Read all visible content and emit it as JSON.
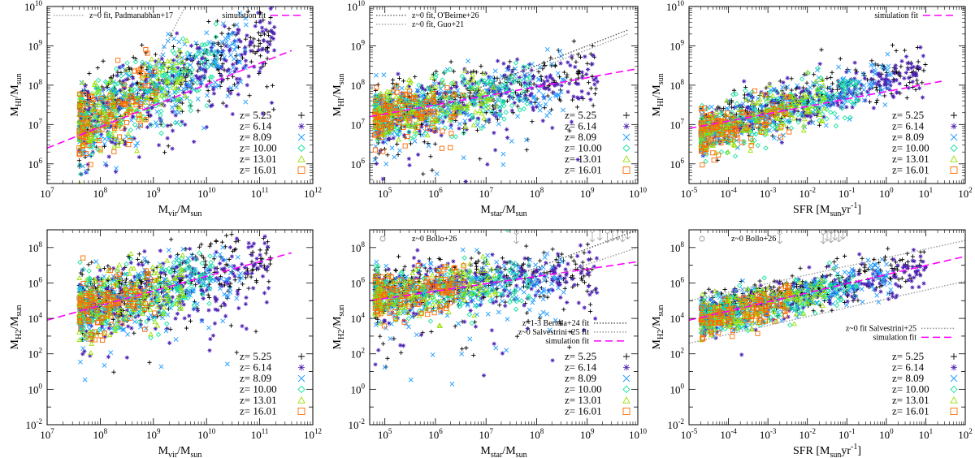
{
  "chart_data": [
    {
      "id": "hi-mvir",
      "type": "scatter",
      "xlabel": {
        "base": "M",
        "sub": "vir",
        "rest": "/M",
        "sub2": "sun"
      },
      "ylabel": {
        "base": "M",
        "sub": "HI",
        "rest": "/M",
        "sub2": "sun"
      },
      "xlim_log": [
        7,
        12
      ],
      "ylim_log": [
        5.5,
        10
      ],
      "xticks_log": [
        7,
        8,
        9,
        10,
        11,
        12
      ],
      "yticks_log": [
        6,
        7,
        8,
        9,
        10
      ],
      "legend_top": [
        {
          "text": "z~0 fit, Padmanabhan+17",
          "style": "dotted",
          "color": "#999999",
          "pos": "left"
        },
        {
          "text": "simulation fit",
          "style": "dashed",
          "color": "#ff00ff",
          "pos": "right"
        }
      ],
      "fit_lines": [
        {
          "name": "simulation fit",
          "style": "dashed",
          "color": "#ff00ff",
          "x": [
            7,
            11.6
          ],
          "y": [
            6.4,
            8.88
          ]
        },
        {
          "name": "z~0 fit, Padmanabhan+17",
          "style": "dotted",
          "color": "#999999",
          "x": [
            8.8,
            9.6
          ],
          "y": [
            7.9,
            10
          ]
        }
      ],
      "cloud": {
        "x0": 7.6,
        "x1": 11.3,
        "slope": 0.62,
        "intercept": 2.3,
        "scatter": 0.45,
        "low_tail": true
      }
    },
    {
      "id": "hi-mstar",
      "type": "scatter",
      "xlabel": {
        "base": "M",
        "sub": "star",
        "rest": "/M",
        "sub2": "sun"
      },
      "ylabel": {
        "base": "M",
        "sub": "HI",
        "rest": "/M",
        "sub2": "sun"
      },
      "xlim_log": [
        4.7,
        10
      ],
      "ylim_log": [
        5.5,
        10
      ],
      "xticks_log": [
        5,
        6,
        7,
        8,
        9,
        10
      ],
      "yticks_log": [
        6,
        7,
        8,
        9,
        10
      ],
      "legend_top": [
        {
          "text": "z~0 fit, O'Beirne+26",
          "style": "dotted",
          "color": "#555555",
          "pos": "left"
        },
        {
          "text": "z~0 fit, Guo+21",
          "style": "dotted",
          "color": "#999999",
          "pos": "left"
        }
      ],
      "fit_lines": [
        {
          "name": "simulation fit",
          "style": "dashed",
          "color": "#ff00ff",
          "x": [
            4.7,
            10
          ],
          "y": [
            7.2,
            8.42
          ]
        },
        {
          "name": "z~0 fit, O'Beirne+26",
          "style": "dotted",
          "color": "#555555",
          "x": [
            6,
            9.8
          ],
          "y": [
            7.5,
            9.4
          ]
        },
        {
          "name": "z~0 fit, Guo+21",
          "style": "dotted",
          "color": "#999999",
          "x": [
            6,
            9.8
          ],
          "y": [
            7.4,
            9.3
          ]
        }
      ],
      "cloud": {
        "x0": 4.8,
        "x1": 9.2,
        "slope": 0.23,
        "intercept": 6.1,
        "scatter": 0.35,
        "low_tail": true
      }
    },
    {
      "id": "hi-sfr",
      "type": "scatter",
      "xlabel": {
        "base": "SFR [M",
        "sub": "sun",
        "rest": "yr",
        "sup": "-1",
        "end": "]"
      },
      "ylabel": {
        "base": "M",
        "sub": "HI",
        "rest": "/M",
        "sub2": "sun"
      },
      "xlim_log": [
        -5,
        2
      ],
      "ylim_log": [
        5.5,
        10
      ],
      "xticks_log": [
        -5,
        -4,
        -3,
        -2,
        -1,
        0,
        1,
        2
      ],
      "yticks_log": [
        6,
        7,
        8,
        9,
        10
      ],
      "legend_top": [
        {
          "text": "simulation fit",
          "style": "dashed",
          "color": "#ff00ff",
          "pos": "right"
        }
      ],
      "fit_lines": [
        {
          "name": "simulation fit",
          "style": "dashed",
          "color": "#ff00ff",
          "x": [
            -5,
            1.4
          ],
          "y": [
            6.9,
            8.1
          ]
        }
      ],
      "cloud": {
        "x0": -4.7,
        "x1": 1.0,
        "slope": 0.28,
        "intercept": 8.1,
        "scatter": 0.3,
        "low_tail": false
      }
    },
    {
      "id": "h2-mvir",
      "type": "scatter",
      "xlabel": {
        "base": "M",
        "sub": "vir",
        "rest": "/M",
        "sub2": "sun"
      },
      "ylabel": {
        "base": "M",
        "sub": "H2",
        "rest": "/M",
        "sub2": "sun"
      },
      "xlim_log": [
        7,
        12
      ],
      "ylim_log": [
        -2,
        9
      ],
      "xticks_log": [
        7,
        8,
        9,
        10,
        11,
        12
      ],
      "yticks_log": [
        -2,
        0,
        2,
        4,
        6,
        8
      ],
      "legend_top": [],
      "fit_lines": [
        {
          "name": "simulation fit",
          "style": "dashed",
          "color": "#ff00ff",
          "x": [
            7,
            11.6
          ],
          "y": [
            3.9,
            7.7
          ]
        }
      ],
      "cloud": {
        "x0": 7.6,
        "x1": 11.2,
        "slope": 0.7,
        "intercept": -0.8,
        "scatter": 0.9,
        "low_tail": true
      }
    },
    {
      "id": "h2-mstar",
      "type": "scatter",
      "xlabel": {
        "base": "M",
        "sub": "star",
        "rest": "/M",
        "sub2": "sun"
      },
      "ylabel": {
        "base": "M",
        "sub": "H2",
        "rest": "/M",
        "sub2": "sun"
      },
      "xlim_log": [
        4.7,
        10
      ],
      "ylim_log": [
        -2,
        9
      ],
      "xticks_log": [
        5,
        6,
        7,
        8,
        9,
        10
      ],
      "yticks_log": [
        -2,
        0,
        2,
        4,
        6,
        8
      ],
      "legend_top": [
        {
          "text": "z~0  Bollo+26",
          "style": "circle",
          "color": "#999999",
          "pos": "left"
        }
      ],
      "legend_mid": [
        {
          "text": "z~1-3 Bertola+24 fit",
          "style": "dotted",
          "color": "#555555"
        },
        {
          "text": "z~0 Salvestrini+25 fit",
          "style": "dotted",
          "color": "#999999"
        },
        {
          "text": "simulation fit",
          "style": "dashed",
          "color": "#ff00ff"
        }
      ],
      "fit_lines": [
        {
          "name": "simulation fit",
          "style": "dashed",
          "color": "#ff00ff",
          "x": [
            4.7,
            10
          ],
          "y": [
            5.0,
            7.2
          ]
        },
        {
          "name": "z~1-3 Bertola+24 fit",
          "style": "dotted",
          "color": "#555555",
          "x": [
            7.2,
            10
          ],
          "y": [
            6.0,
            9.0
          ]
        },
        {
          "name": "z~0 Salvestrini+25 fit",
          "style": "dotted",
          "color": "#999999",
          "x": [
            7.8,
            10
          ],
          "y": [
            5.9,
            8.0
          ]
        }
      ],
      "cloud": {
        "x0": 4.8,
        "x1": 9.2,
        "slope": 0.3,
        "intercept": 3.8,
        "scatter": 0.7,
        "low_tail": true
      },
      "arrows_x": [
        9.1,
        9.25,
        9.4,
        9.5,
        9.6,
        9.7,
        9.8
      ],
      "arrows_y": [
        8.6,
        8.7,
        8.55,
        8.65,
        8.7,
        8.6,
        8.75
      ],
      "arrow_single": {
        "x": 7.6,
        "y": 8.5
      }
    },
    {
      "id": "h2-sfr",
      "type": "scatter",
      "xlabel": {
        "base": "SFR [M",
        "sub": "sun",
        "rest": "yr",
        "sup": "-1",
        "end": "]"
      },
      "ylabel": {
        "base": "M",
        "sub": "H2",
        "rest": "/M",
        "sub2": "sun"
      },
      "xlim_log": [
        -5,
        2
      ],
      "ylim_log": [
        -2,
        9
      ],
      "xticks_log": [
        -5,
        -4,
        -3,
        -2,
        -1,
        0,
        1,
        2
      ],
      "yticks_log": [
        -2,
        0,
        2,
        4,
        6,
        8
      ],
      "legend_top": [
        {
          "text": "z~0  Bollo+26",
          "style": "circle",
          "color": "#999999",
          "pos": "left"
        }
      ],
      "legend_mid": [
        {
          "text": "z~0 fit Salvestrini+25",
          "style": "dotted",
          "color": "#999999"
        },
        {
          "text": "simulation fit",
          "style": "dashed",
          "color": "#ff00ff"
        }
      ],
      "fit_lines": [
        {
          "name": "simulation fit",
          "style": "dashed",
          "color": "#ff00ff",
          "x": [
            -5,
            2
          ],
          "y": [
            3.9,
            7.5
          ]
        },
        {
          "name": "z~0 fit Salvestrini+25 upper",
          "style": "dotted",
          "color": "#999999",
          "x": [
            -5,
            2
          ],
          "y": [
            5.0,
            8.4
          ]
        },
        {
          "name": "z~0 fit Salvestrini+25 lower",
          "style": "dotted",
          "color": "#999999",
          "x": [
            -5,
            2
          ],
          "y": [
            2.6,
            6.1
          ]
        }
      ],
      "cloud": {
        "x0": -4.7,
        "x1": 1.0,
        "slope": 0.48,
        "intercept": 6.3,
        "scatter": 0.55,
        "low_tail": false
      },
      "arrows_x": [
        -1.6,
        -1.5,
        -1.4,
        -1.3,
        -1.2,
        -1.1
      ],
      "arrows_y": [
        8.5,
        8.65,
        8.55,
        8.7,
        8.6,
        8.75
      ],
      "arrow_single": {
        "x": -2.7,
        "y": 8.5
      }
    }
  ],
  "redshift_legend": [
    {
      "label": "z=  5.25",
      "marker": "+",
      "color": "#000000"
    },
    {
      "label": "z=  6.14",
      "marker": "*",
      "color": "#4b1fb4"
    },
    {
      "label": "z=  8.09",
      "marker": "x",
      "color": "#1e9bff"
    },
    {
      "label": "z= 10.00",
      "marker": "diamond",
      "color": "#19e3a0"
    },
    {
      "label": "z= 13.01",
      "marker": "triangle",
      "color": "#9ae000"
    },
    {
      "label": "z= 16.01",
      "marker": "square",
      "color": "#ff6a00"
    }
  ],
  "colors": {
    "sim_fit": "#ff00ff",
    "dotted_dark": "#555555",
    "dotted_light": "#999999"
  }
}
